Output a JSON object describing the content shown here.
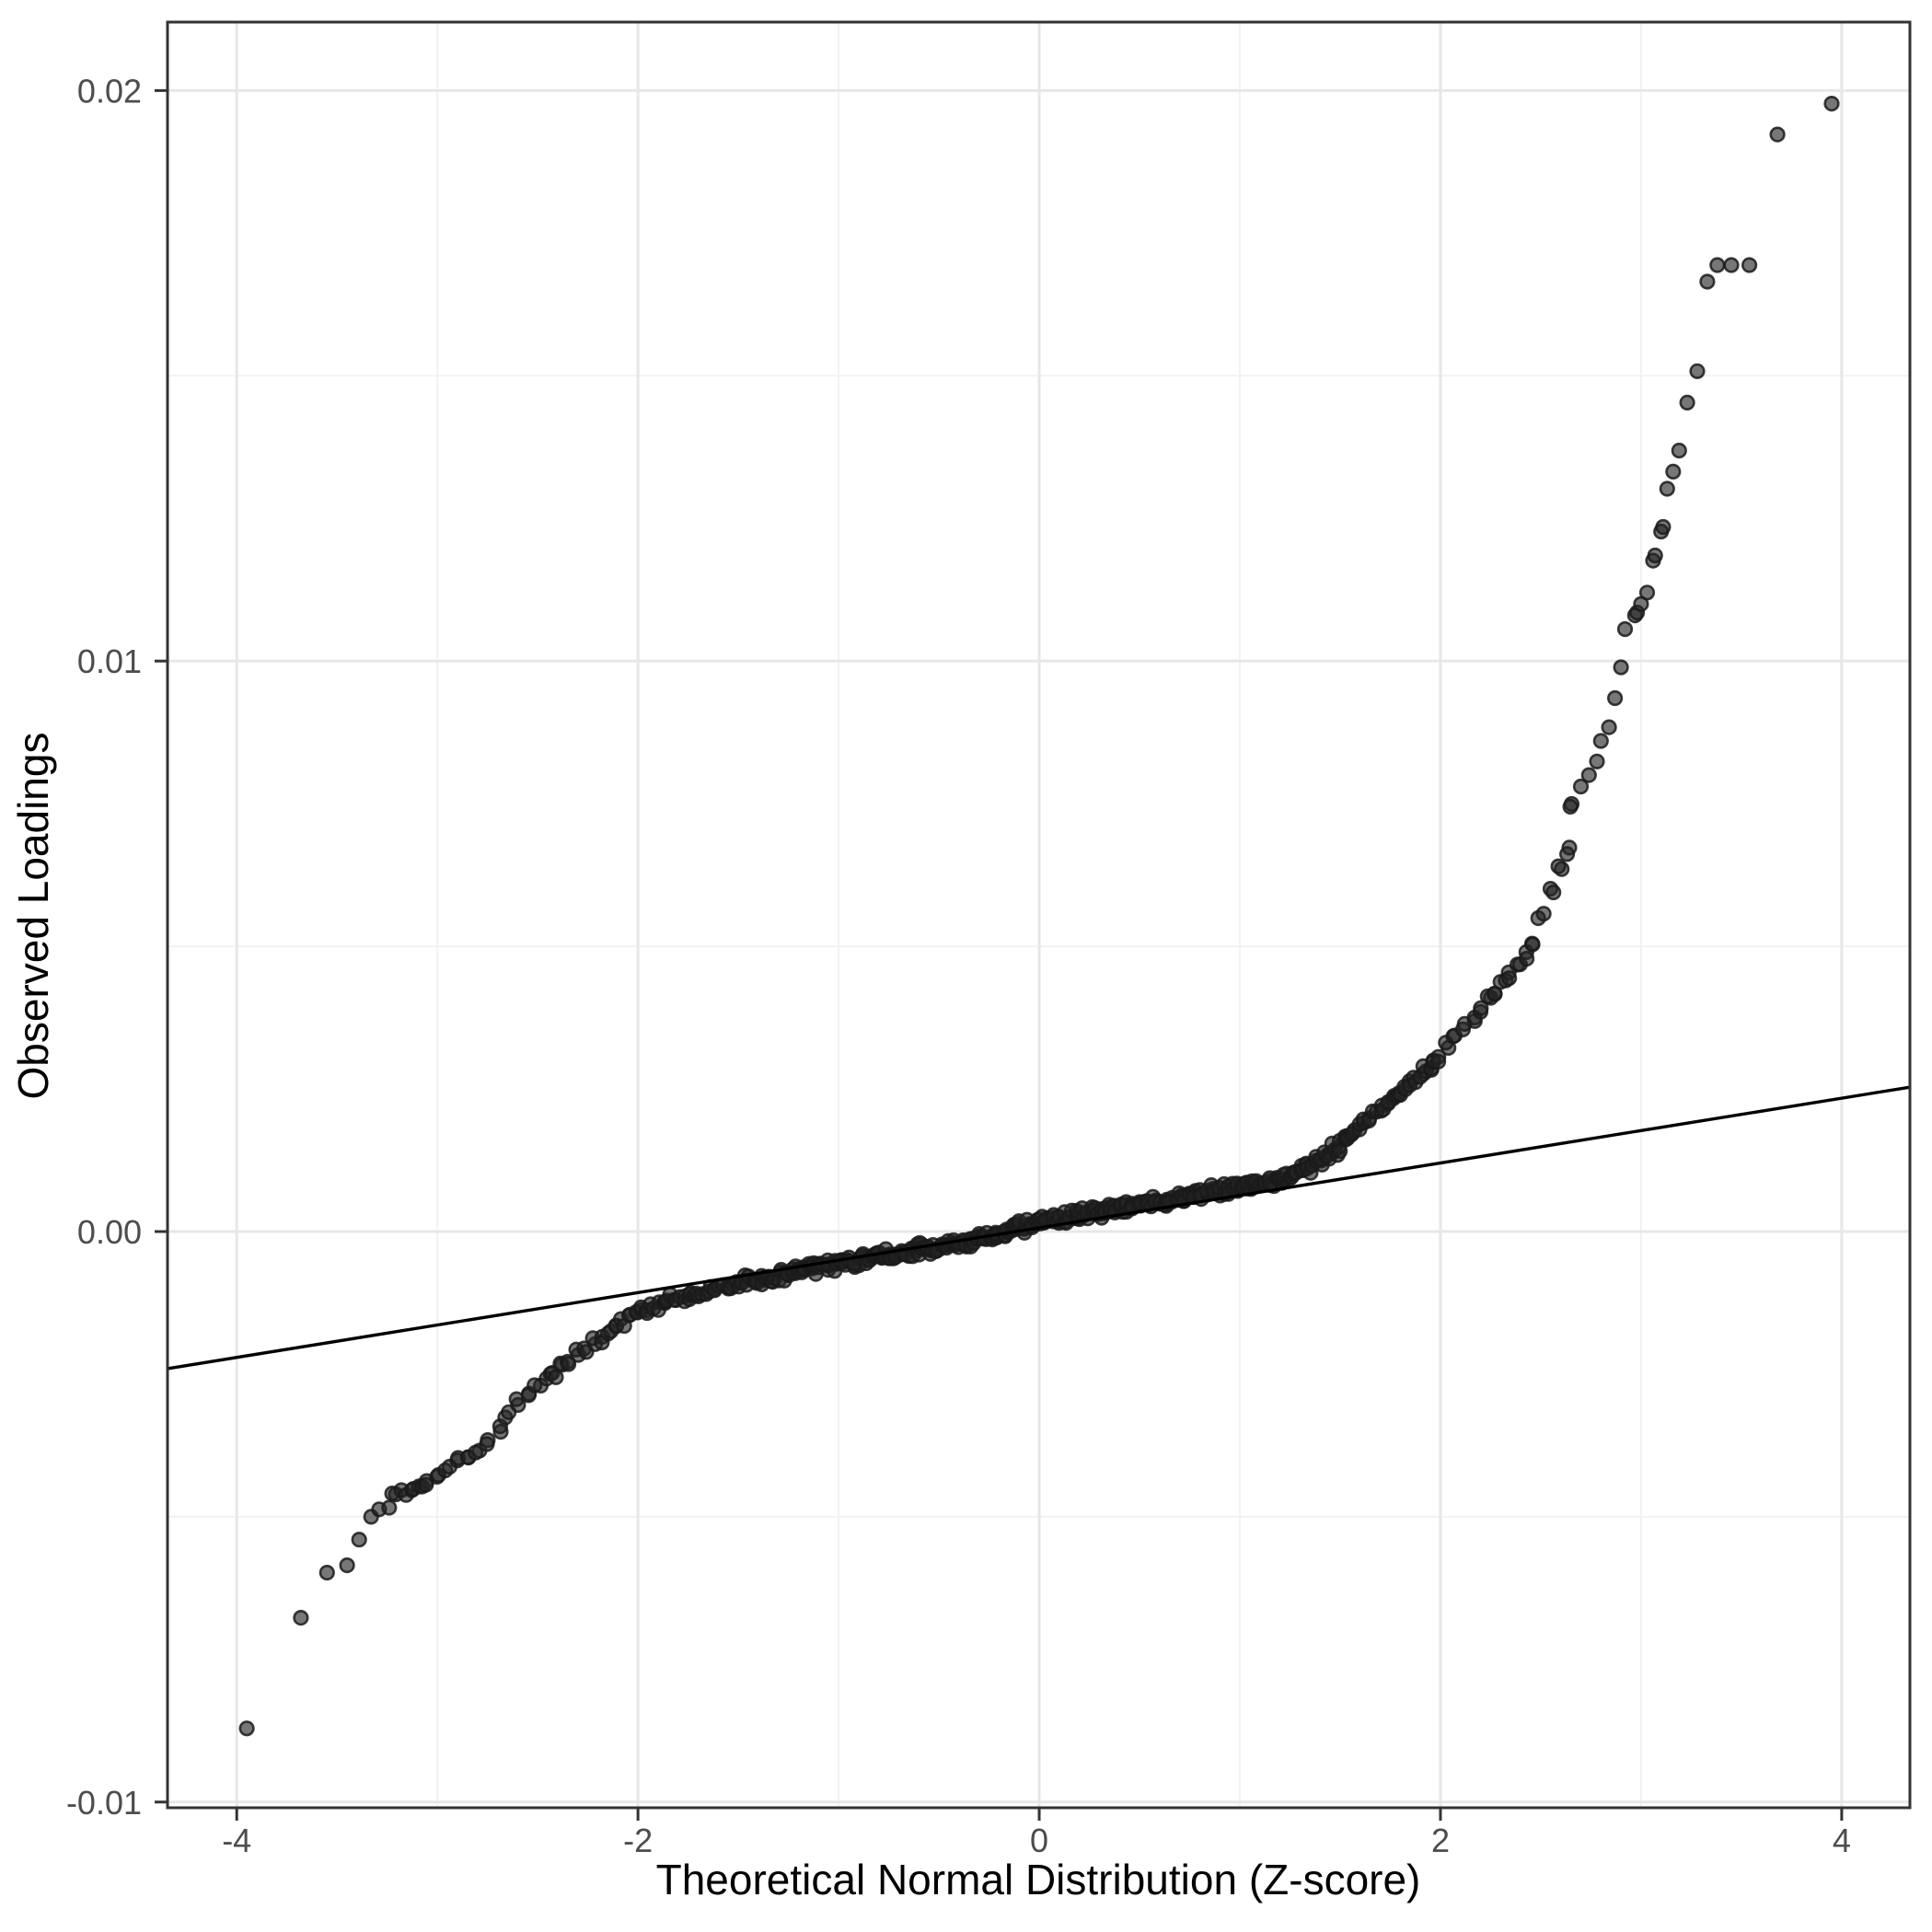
{
  "chart_data": {
    "type": "scatter",
    "title": "",
    "xlabel": "Theoretical Normal Distribution (Z-score)",
    "ylabel": "Observed Loadings",
    "xlim": [
      -4.345,
      4.34
    ],
    "ylim": [
      -0.0101,
      0.0212
    ],
    "x_ticks": [
      -4,
      -2,
      0,
      2,
      4
    ],
    "x_tick_labels": [
      "-4",
      "-2",
      "0",
      "2",
      "4"
    ],
    "x_minor_gridlines": [
      -3,
      -1,
      1,
      3
    ],
    "y_ticks": [
      0.02,
      0.01,
      0.0,
      -0.01
    ],
    "y_tick_labels": [
      "0.02",
      "0.01",
      "0.00",
      "-0.01"
    ],
    "y_minor_gridlines": [
      0.015,
      0.005,
      -0.005
    ],
    "grid": true,
    "legend": "none",
    "reference_line": {
      "intercept": 6.55e-05,
      "slope": 0.000568
    },
    "band_z_range": [
      -3.21,
      2.7
    ],
    "band_curve_anchors": [
      [
        -3.21,
        -0.0046
      ],
      [
        -3.05,
        -0.00442
      ],
      [
        -2.9,
        -0.00402
      ],
      [
        -2.75,
        -0.0037
      ],
      [
        -2.6,
        -0.003
      ],
      [
        -2.45,
        -0.00257
      ],
      [
        -2.3,
        -0.00215
      ],
      [
        -2.15,
        -0.00175
      ],
      [
        -2.0,
        -0.0014
      ],
      [
        -1.85,
        -0.00122
      ],
      [
        -1.7,
        -0.0011
      ],
      [
        -1.5,
        -0.0009
      ],
      [
        -1.25,
        -0.00072
      ],
      [
        -1.0,
        -0.00056
      ],
      [
        -0.75,
        -0.0004
      ],
      [
        -0.5,
        -0.00026
      ],
      [
        -0.25,
        -0.00012
      ],
      [
        0.0,
        0.00018
      ],
      [
        0.25,
        0.00033
      ],
      [
        0.5,
        0.00048
      ],
      [
        0.75,
        0.00063
      ],
      [
        1.0,
        0.0008
      ],
      [
        1.25,
        0.00095
      ],
      [
        1.4,
        0.00125
      ],
      [
        1.55,
        0.00165
      ],
      [
        1.7,
        0.00215
      ],
      [
        1.85,
        0.00262
      ],
      [
        2.0,
        0.00305
      ],
      [
        2.2,
        0.0039
      ],
      [
        2.35,
        0.0045
      ],
      [
        2.45,
        0.00505
      ],
      [
        2.55,
        0.00598
      ],
      [
        2.63,
        0.00671
      ],
      [
        2.66,
        0.00752
      ],
      [
        2.7,
        0.0078
      ]
    ],
    "tail_points": {
      "left": [
        [
          -3.95,
          -0.00871
        ],
        [
          -3.68,
          -0.00677
        ],
        [
          -3.55,
          -0.00598
        ],
        [
          -3.45,
          -0.00585
        ],
        [
          -3.39,
          -0.0054
        ],
        [
          -3.33,
          -0.005
        ],
        [
          -3.29,
          -0.00487
        ],
        [
          -3.24,
          -0.00484
        ]
      ],
      "right": [
        [
          2.74,
          0.008
        ],
        [
          2.78,
          0.00824
        ],
        [
          2.8,
          0.0086
        ],
        [
          2.84,
          0.00884
        ],
        [
          2.87,
          0.00935
        ],
        [
          2.9,
          0.00989
        ],
        [
          2.92,
          0.01056
        ],
        [
          2.97,
          0.0108
        ],
        [
          2.98,
          0.01085
        ],
        [
          3.0,
          0.011
        ],
        [
          3.03,
          0.0112
        ],
        [
          3.06,
          0.01176
        ],
        [
          3.07,
          0.01185
        ],
        [
          3.1,
          0.01227
        ],
        [
          3.11,
          0.01235
        ],
        [
          3.13,
          0.01302
        ],
        [
          3.16,
          0.01332
        ],
        [
          3.19,
          0.01369
        ],
        [
          3.23,
          0.01453
        ],
        [
          3.28,
          0.01508
        ],
        [
          3.33,
          0.01665
        ],
        [
          3.38,
          0.01694
        ],
        [
          3.45,
          0.01694
        ],
        [
          3.54,
          0.01694
        ],
        [
          3.68,
          0.01923
        ],
        [
          3.95,
          0.01977
        ]
      ]
    },
    "style": {
      "point_fill": "#232323",
      "point_fill_opacity": 0.62,
      "point_stroke": "#1a1a1a",
      "point_stroke_opacity": 0.85,
      "point_radius": 7.3,
      "point_stroke_width": 2.6,
      "line_color": "#000000",
      "line_width": 3.4,
      "panel_border_color": "#333333",
      "grid_major_color": "#e7e7e7",
      "grid_minor_color": "#f1f1f1",
      "tick_color": "#333333",
      "tick_label_color": "#4d4d4d",
      "background": "#ffffff"
    }
  }
}
